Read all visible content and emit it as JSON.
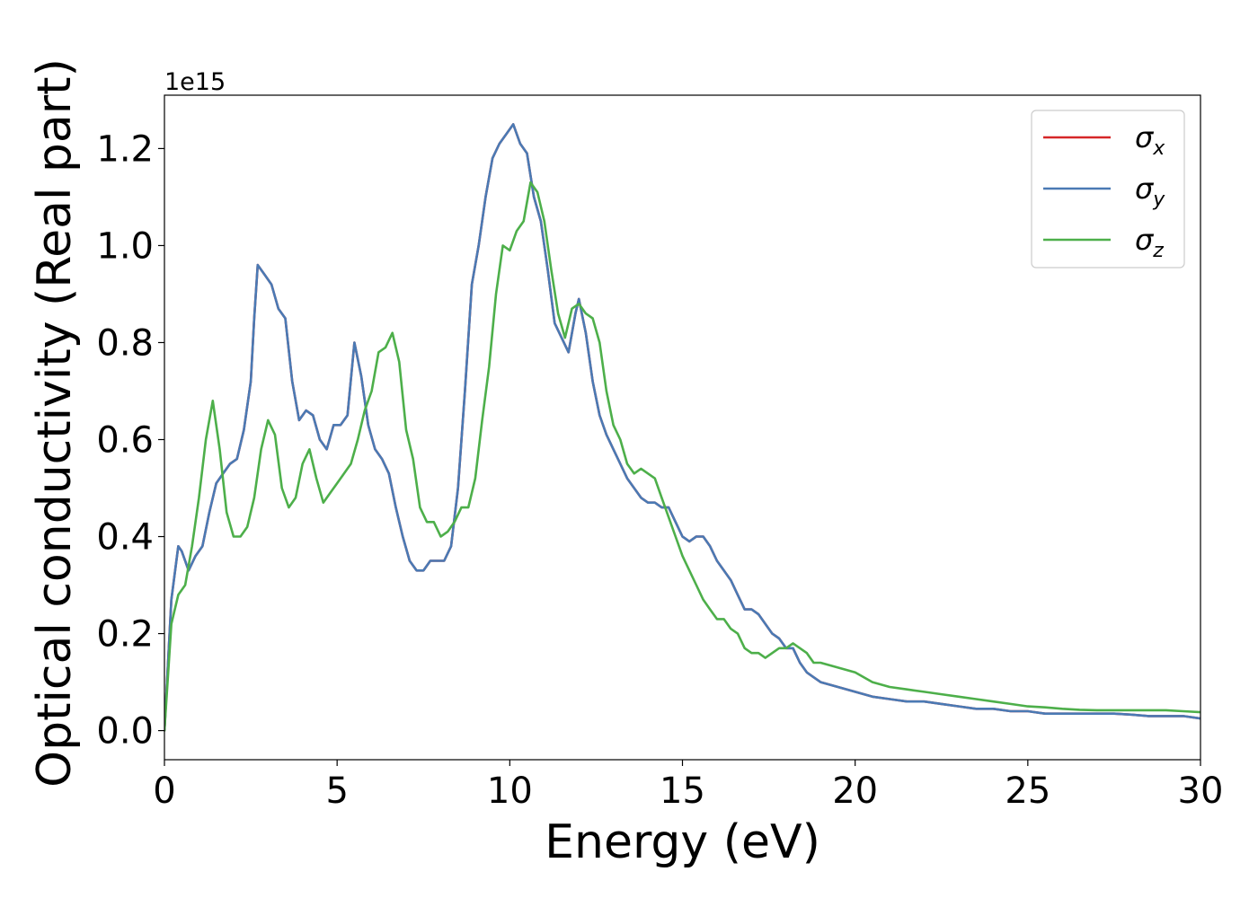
{
  "chart_data": {
    "type": "line",
    "xlabel": "Energy (eV)",
    "ylabel": "Optical conductivity (Real part)",
    "y_offset_label": "1e15",
    "xlim": [
      0,
      30
    ],
    "ylim": [
      -0.06,
      1.31
    ],
    "x_ticks": [
      0,
      5,
      10,
      15,
      20,
      25,
      30
    ],
    "x_tick_labels": [
      "0",
      "5",
      "10",
      "15",
      "20",
      "25",
      "30"
    ],
    "y_ticks": [
      0.0,
      0.2,
      0.4,
      0.6,
      0.8,
      1.0,
      1.2
    ],
    "y_tick_labels": [
      "0.0",
      "0.2",
      "0.4",
      "0.6",
      "0.8",
      "1.0",
      "1.2"
    ],
    "grid": false,
    "legend_position": "top-right",
    "series": [
      {
        "name": "σ",
        "subscript": "x",
        "color": "#d62728",
        "x": [
          0,
          0.2,
          0.4,
          0.5,
          0.7,
          0.9,
          1.1,
          1.3,
          1.5,
          1.7,
          1.9,
          2.1,
          2.3,
          2.5,
          2.6,
          2.7,
          2.9,
          3.1,
          3.3,
          3.5,
          3.7,
          3.9,
          4.1,
          4.3,
          4.5,
          4.7,
          4.9,
          5.1,
          5.3,
          5.5,
          5.7,
          5.9,
          6.1,
          6.3,
          6.5,
          6.7,
          6.9,
          7.1,
          7.3,
          7.5,
          7.7,
          7.9,
          8.1,
          8.3,
          8.5,
          8.7,
          8.9,
          9.1,
          9.3,
          9.5,
          9.7,
          9.9,
          10.1,
          10.3,
          10.5,
          10.7,
          10.9,
          11.1,
          11.3,
          11.5,
          11.7,
          11.9,
          12.0,
          12.2,
          12.4,
          12.6,
          12.8,
          13.0,
          13.2,
          13.4,
          13.6,
          13.8,
          14.0,
          14.2,
          14.4,
          14.6,
          14.8,
          15.0,
          15.2,
          15.4,
          15.6,
          15.8,
          16.0,
          16.2,
          16.4,
          16.6,
          16.8,
          17.0,
          17.2,
          17.4,
          17.6,
          17.8,
          18.0,
          18.2,
          18.4,
          18.6,
          18.8,
          19.0,
          19.5,
          20.0,
          20.5,
          21.0,
          21.5,
          22.0,
          22.5,
          23.0,
          23.5,
          24.0,
          24.5,
          25.0,
          25.5,
          26.0,
          26.5,
          27.0,
          27.5,
          28.0,
          28.5,
          29.0,
          29.5,
          30.0
        ],
        "values": [
          0.0,
          0.27,
          0.38,
          0.37,
          0.33,
          0.36,
          0.38,
          0.45,
          0.51,
          0.53,
          0.55,
          0.56,
          0.62,
          0.72,
          0.85,
          0.96,
          0.94,
          0.92,
          0.87,
          0.85,
          0.72,
          0.64,
          0.66,
          0.65,
          0.6,
          0.58,
          0.63,
          0.63,
          0.65,
          0.8,
          0.73,
          0.63,
          0.58,
          0.56,
          0.53,
          0.46,
          0.4,
          0.35,
          0.33,
          0.33,
          0.35,
          0.35,
          0.35,
          0.38,
          0.5,
          0.7,
          0.92,
          1.0,
          1.1,
          1.18,
          1.21,
          1.23,
          1.25,
          1.21,
          1.19,
          1.1,
          1.05,
          0.95,
          0.84,
          0.81,
          0.78,
          0.86,
          0.89,
          0.82,
          0.72,
          0.65,
          0.61,
          0.58,
          0.55,
          0.52,
          0.5,
          0.48,
          0.47,
          0.47,
          0.46,
          0.46,
          0.43,
          0.4,
          0.39,
          0.4,
          0.4,
          0.38,
          0.35,
          0.33,
          0.31,
          0.28,
          0.25,
          0.25,
          0.24,
          0.22,
          0.2,
          0.19,
          0.17,
          0.17,
          0.14,
          0.12,
          0.11,
          0.1,
          0.09,
          0.08,
          0.07,
          0.065,
          0.06,
          0.06,
          0.055,
          0.05,
          0.045,
          0.045,
          0.04,
          0.04,
          0.035,
          0.035,
          0.035,
          0.035,
          0.035,
          0.033,
          0.03,
          0.03,
          0.03,
          0.025
        ]
      },
      {
        "name": "σ",
        "subscript": "y",
        "color": "#4a7ab4",
        "x": [
          0,
          0.2,
          0.4,
          0.5,
          0.7,
          0.9,
          1.1,
          1.3,
          1.5,
          1.7,
          1.9,
          2.1,
          2.3,
          2.5,
          2.6,
          2.7,
          2.9,
          3.1,
          3.3,
          3.5,
          3.7,
          3.9,
          4.1,
          4.3,
          4.5,
          4.7,
          4.9,
          5.1,
          5.3,
          5.5,
          5.7,
          5.9,
          6.1,
          6.3,
          6.5,
          6.7,
          6.9,
          7.1,
          7.3,
          7.5,
          7.7,
          7.9,
          8.1,
          8.3,
          8.5,
          8.7,
          8.9,
          9.1,
          9.3,
          9.5,
          9.7,
          9.9,
          10.1,
          10.3,
          10.5,
          10.7,
          10.9,
          11.1,
          11.3,
          11.5,
          11.7,
          11.9,
          12.0,
          12.2,
          12.4,
          12.6,
          12.8,
          13.0,
          13.2,
          13.4,
          13.6,
          13.8,
          14.0,
          14.2,
          14.4,
          14.6,
          14.8,
          15.0,
          15.2,
          15.4,
          15.6,
          15.8,
          16.0,
          16.2,
          16.4,
          16.6,
          16.8,
          17.0,
          17.2,
          17.4,
          17.6,
          17.8,
          18.0,
          18.2,
          18.4,
          18.6,
          18.8,
          19.0,
          19.5,
          20.0,
          20.5,
          21.0,
          21.5,
          22.0,
          22.5,
          23.0,
          23.5,
          24.0,
          24.5,
          25.0,
          25.5,
          26.0,
          26.5,
          27.0,
          27.5,
          28.0,
          28.5,
          29.0,
          29.5,
          30.0
        ],
        "values": [
          0.0,
          0.27,
          0.38,
          0.37,
          0.33,
          0.36,
          0.38,
          0.45,
          0.51,
          0.53,
          0.55,
          0.56,
          0.62,
          0.72,
          0.85,
          0.96,
          0.94,
          0.92,
          0.87,
          0.85,
          0.72,
          0.64,
          0.66,
          0.65,
          0.6,
          0.58,
          0.63,
          0.63,
          0.65,
          0.8,
          0.73,
          0.63,
          0.58,
          0.56,
          0.53,
          0.46,
          0.4,
          0.35,
          0.33,
          0.33,
          0.35,
          0.35,
          0.35,
          0.38,
          0.5,
          0.7,
          0.92,
          1.0,
          1.1,
          1.18,
          1.21,
          1.23,
          1.25,
          1.21,
          1.19,
          1.1,
          1.05,
          0.95,
          0.84,
          0.81,
          0.78,
          0.86,
          0.89,
          0.82,
          0.72,
          0.65,
          0.61,
          0.58,
          0.55,
          0.52,
          0.5,
          0.48,
          0.47,
          0.47,
          0.46,
          0.46,
          0.43,
          0.4,
          0.39,
          0.4,
          0.4,
          0.38,
          0.35,
          0.33,
          0.31,
          0.28,
          0.25,
          0.25,
          0.24,
          0.22,
          0.2,
          0.19,
          0.17,
          0.17,
          0.14,
          0.12,
          0.11,
          0.1,
          0.09,
          0.08,
          0.07,
          0.065,
          0.06,
          0.06,
          0.055,
          0.05,
          0.045,
          0.045,
          0.04,
          0.04,
          0.035,
          0.035,
          0.035,
          0.035,
          0.035,
          0.033,
          0.03,
          0.03,
          0.03,
          0.025
        ]
      },
      {
        "name": "σ",
        "subscript": "z",
        "color": "#4daf4a",
        "x": [
          0,
          0.2,
          0.4,
          0.6,
          0.8,
          1.0,
          1.2,
          1.4,
          1.6,
          1.8,
          2.0,
          2.2,
          2.4,
          2.6,
          2.8,
          3.0,
          3.2,
          3.4,
          3.6,
          3.8,
          4.0,
          4.2,
          4.4,
          4.6,
          4.8,
          5.0,
          5.2,
          5.4,
          5.6,
          5.8,
          6.0,
          6.2,
          6.4,
          6.6,
          6.8,
          7.0,
          7.2,
          7.4,
          7.6,
          7.8,
          8.0,
          8.2,
          8.4,
          8.6,
          8.8,
          9.0,
          9.2,
          9.4,
          9.6,
          9.8,
          10.0,
          10.2,
          10.4,
          10.6,
          10.8,
          11.0,
          11.2,
          11.4,
          11.6,
          11.8,
          12.0,
          12.2,
          12.4,
          12.6,
          12.8,
          13.0,
          13.2,
          13.4,
          13.6,
          13.8,
          14.0,
          14.2,
          14.4,
          14.6,
          14.8,
          15.0,
          15.2,
          15.4,
          15.6,
          15.8,
          16.0,
          16.2,
          16.4,
          16.6,
          16.8,
          17.0,
          17.2,
          17.4,
          17.6,
          17.8,
          18.0,
          18.2,
          18.4,
          18.6,
          18.8,
          19.0,
          19.5,
          20.0,
          20.5,
          21.0,
          21.5,
          22.0,
          22.5,
          23.0,
          23.5,
          24.0,
          24.5,
          25.0,
          25.5,
          26.0,
          26.5,
          27.0,
          27.5,
          28.0,
          28.5,
          29.0,
          29.5,
          30.0
        ],
        "values": [
          0.0,
          0.22,
          0.28,
          0.3,
          0.38,
          0.48,
          0.6,
          0.68,
          0.58,
          0.45,
          0.4,
          0.4,
          0.42,
          0.48,
          0.58,
          0.64,
          0.61,
          0.5,
          0.46,
          0.48,
          0.55,
          0.58,
          0.52,
          0.47,
          0.49,
          0.51,
          0.53,
          0.55,
          0.6,
          0.66,
          0.7,
          0.78,
          0.79,
          0.82,
          0.76,
          0.62,
          0.56,
          0.46,
          0.43,
          0.43,
          0.4,
          0.41,
          0.43,
          0.46,
          0.46,
          0.52,
          0.64,
          0.75,
          0.9,
          1.0,
          0.99,
          1.03,
          1.05,
          1.13,
          1.11,
          1.05,
          0.95,
          0.86,
          0.81,
          0.87,
          0.88,
          0.86,
          0.85,
          0.8,
          0.7,
          0.63,
          0.6,
          0.55,
          0.53,
          0.54,
          0.53,
          0.52,
          0.48,
          0.44,
          0.4,
          0.36,
          0.33,
          0.3,
          0.27,
          0.25,
          0.23,
          0.23,
          0.21,
          0.2,
          0.17,
          0.16,
          0.16,
          0.15,
          0.16,
          0.17,
          0.17,
          0.18,
          0.17,
          0.16,
          0.14,
          0.14,
          0.13,
          0.12,
          0.1,
          0.09,
          0.085,
          0.08,
          0.075,
          0.07,
          0.065,
          0.06,
          0.055,
          0.05,
          0.048,
          0.045,
          0.043,
          0.042,
          0.042,
          0.042,
          0.042,
          0.042,
          0.04,
          0.038
        ]
      }
    ]
  }
}
